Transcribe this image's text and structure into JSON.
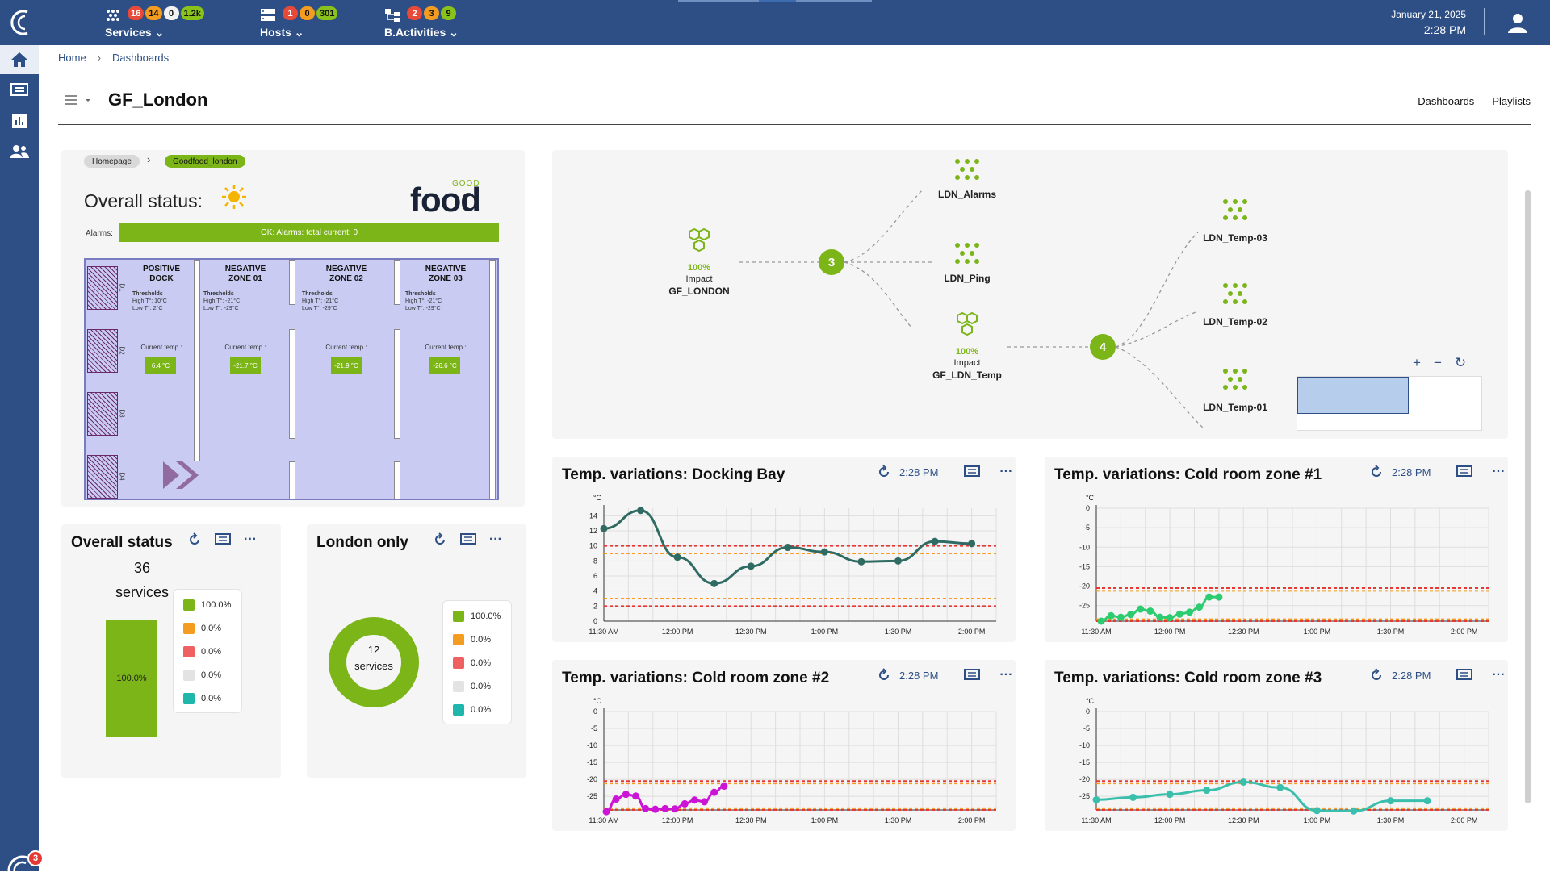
{
  "topbar": {
    "services": {
      "label": "Services",
      "badges": [
        "16",
        "14",
        "0",
        "1.2k"
      ]
    },
    "hosts": {
      "label": "Hosts",
      "badges": [
        "1",
        "0",
        "301"
      ]
    },
    "bactivities": {
      "label": "B.Activities",
      "badges": [
        "2",
        "3",
        "9"
      ]
    },
    "date": "January 21, 2025",
    "time": "2:28 PM",
    "icons": [
      "services-icon",
      "hosts-icon",
      "business-activities-icon",
      "user-icon",
      "logo-icon"
    ]
  },
  "badge_colors": {
    "critical": "#e84a3a",
    "warning": "#f39c1f",
    "unknown": "#f2f2f2",
    "ok": "#88c21a"
  },
  "sidebar": {
    "items": [
      "home-icon",
      "monitoring-icon",
      "reporting-icon",
      "users-icon"
    ],
    "notifications": "3"
  },
  "breadcrumb": {
    "home": "Home",
    "dashboards": "Dashboards"
  },
  "page": {
    "title": "GF_London",
    "links": {
      "dashboards": "Dashboards",
      "playlists": "Playlists"
    }
  },
  "floorplan": {
    "crumb_home": "Homepage",
    "crumb_current": "Goodfood_london",
    "status_label": "Overall status:",
    "logo_top": "GOOD",
    "logo_main": "food",
    "alarms_label": "Alarms:",
    "alarms_text": "OK: Alarms: total current: 0",
    "dock_labels": [
      "D1",
      "D2",
      "D3",
      "D4"
    ],
    "zones": [
      {
        "name_1": "POSITIVE",
        "name_2": "DOCK",
        "thresholds": "Thresholds",
        "high": "High T°: 10°C",
        "low": "Low T°: 2°C",
        "current_label": "Current temp.:",
        "current": "6.4 °C"
      },
      {
        "name_1": "NEGATIVE",
        "name_2": "ZONE 01",
        "thresholds": "Thresholds",
        "high": "High T°: -21°C",
        "low": "Low T°: -29°C",
        "current_label": "Current temp.:",
        "current": "-21.7 °C"
      },
      {
        "name_1": "NEGATIVE",
        "name_2": "ZONE 02",
        "thresholds": "Thresholds",
        "high": "High T°: -21°C",
        "low": "Low T°: -29°C",
        "current_label": "Current temp.:",
        "current": "-21.9 °C"
      },
      {
        "name_1": "NEGATIVE",
        "name_2": "ZONE 03",
        "thresholds": "Thresholds",
        "high": "High T°: -21°C",
        "low": "Low T°: -29°C",
        "current_label": "Current temp.:",
        "current": "-26.6 °C"
      }
    ],
    "accent": "#7cb518"
  },
  "topology": {
    "root": {
      "pct": "100%",
      "sub": "Impact",
      "name": "GF_LONDON"
    },
    "count1": "3",
    "children1": [
      "LDN_Alarms",
      "LDN_Ping"
    ],
    "mid": {
      "pct": "100%",
      "sub": "Impact",
      "name": "GF_LDN_Temp"
    },
    "count2": "4",
    "children2": [
      "LDN_Temp-03",
      "LDN_Temp-02",
      "LDN_Temp-01"
    ],
    "zoom": {
      "plus": "+",
      "minus": "−",
      "reset": "↻"
    }
  },
  "overall_status": {
    "title": "Overall status",
    "count": "36",
    "unit": "services",
    "bar_label": "100.0%",
    "legend": [
      {
        "color": "#7cb518",
        "value": "100.0%"
      },
      {
        "color": "#f39c1f",
        "value": "0.0%"
      },
      {
        "color": "#ef6060",
        "value": "0.0%"
      },
      {
        "color": "#e3e3e3",
        "value": "0.0%"
      },
      {
        "color": "#1fb6ac",
        "value": "0.0%"
      }
    ]
  },
  "london_only": {
    "title": "London only",
    "count": "12",
    "unit": "services",
    "legend": [
      {
        "color": "#7cb518",
        "value": "100.0%"
      },
      {
        "color": "#f39c1f",
        "value": "0.0%"
      },
      {
        "color": "#ef6060",
        "value": "0.0%"
      },
      {
        "color": "#e3e3e3",
        "value": "0.0%"
      },
      {
        "color": "#1fb6ac",
        "value": "0.0%"
      }
    ]
  },
  "widget_time": "2:28 PM",
  "chart_data": [
    {
      "type": "line",
      "title": "Temp. variations: Docking Bay",
      "ylabel": "°C",
      "ylim": [
        0,
        15
      ],
      "yticks": [
        0,
        2,
        4,
        6,
        8,
        10,
        12,
        14
      ],
      "xticks": [
        "11:30 AM",
        "12:00 PM",
        "12:30 PM",
        "1:00 PM",
        "1:30 PM",
        "2:00 PM"
      ],
      "xlim": [
        690,
        850
      ],
      "x": [
        690,
        705,
        720,
        735,
        750,
        765,
        780,
        795,
        810,
        825,
        840
      ],
      "y": [
        12.3,
        14.7,
        8.5,
        5.0,
        7.3,
        9.8,
        9.2,
        7.9,
        8.0,
        10.6,
        10.3
      ],
      "color": "#2f6b63",
      "thresholds": [
        {
          "value": 10.0,
          "color": "#e53935"
        },
        {
          "value": 9.0,
          "color": "#f39c1f"
        },
        {
          "value": 3.0,
          "color": "#f39c1f"
        },
        {
          "value": 2.0,
          "color": "#e53935"
        }
      ]
    },
    {
      "type": "line",
      "title": "Temp. variations: Cold room zone #1",
      "ylabel": "°C",
      "ylim": [
        -29,
        0
      ],
      "yticks": [
        0,
        -5,
        -10,
        -15,
        -20,
        -25
      ],
      "xticks": [
        "11:30 AM",
        "12:00 PM",
        "12:30 PM",
        "1:00 PM",
        "1:30 PM",
        "2:00 PM"
      ],
      "xlim": [
        690,
        850
      ],
      "x": [
        692,
        696,
        700,
        704,
        708,
        712,
        716,
        720,
        724,
        728,
        732,
        736,
        740
      ],
      "y": [
        -29,
        -27.6,
        -28.0,
        -27.3,
        -25.9,
        -26.4,
        -28.0,
        -28.1,
        -27.2,
        -26.7,
        -25.4,
        -22.8,
        -22.8
      ],
      "color": "#2ecc71",
      "thresholds": [
        {
          "value": -20.5,
          "color": "#e53935"
        },
        {
          "value": -21.2,
          "color": "#f39c1f"
        },
        {
          "value": -28.5,
          "color": "#f39c1f"
        },
        {
          "value": -29.0,
          "color": "#e53935"
        }
      ]
    },
    {
      "type": "line",
      "title": "Temp. variations: Cold room zone #2",
      "ylabel": "°C",
      "ylim": [
        -29,
        0
      ],
      "yticks": [
        0,
        -5,
        -10,
        -15,
        -20,
        -25
      ],
      "xticks": [
        "11:30 AM",
        "12:00 PM",
        "12:30 PM",
        "1:00 PM",
        "1:30 PM",
        "2:00 PM"
      ],
      "xlim": [
        690,
        850
      ],
      "x": [
        691,
        695,
        699,
        703,
        707,
        711,
        715,
        719,
        723,
        727,
        731,
        735,
        739
      ],
      "y": [
        -29.5,
        -25.8,
        -24.4,
        -24.9,
        -28.6,
        -28.8,
        -28.6,
        -28.7,
        -27.2,
        -26.1,
        -26.6,
        -23.8,
        -22.0
      ],
      "color": "#cc14d6",
      "thresholds": [
        {
          "value": -20.5,
          "color": "#e53935"
        },
        {
          "value": -21.2,
          "color": "#f39c1f"
        },
        {
          "value": -28.5,
          "color": "#f39c1f"
        },
        {
          "value": -29.0,
          "color": "#e53935"
        }
      ]
    },
    {
      "type": "line",
      "title": "Temp. variations: Cold room zone #3",
      "ylabel": "°C",
      "ylim": [
        -29,
        0
      ],
      "yticks": [
        0,
        -5,
        -10,
        -15,
        -20,
        -25
      ],
      "xticks": [
        "11:30 AM",
        "12:00 PM",
        "12:30 PM",
        "1:00 PM",
        "1:30 PM",
        "2:00 PM"
      ],
      "xlim": [
        690,
        850
      ],
      "x": [
        690,
        705,
        720,
        735,
        750,
        765,
        780,
        795,
        810,
        825
      ],
      "y": [
        -26.0,
        -25.3,
        -24.4,
        -23.2,
        -20.8,
        -22.4,
        -29.2,
        -29.3,
        -26.3,
        -26.3
      ],
      "color": "#3bbfad",
      "thresholds": [
        {
          "value": -20.5,
          "color": "#e53935"
        },
        {
          "value": -21.2,
          "color": "#f39c1f"
        },
        {
          "value": -28.5,
          "color": "#f39c1f"
        },
        {
          "value": -29.0,
          "color": "#e53935"
        }
      ]
    }
  ]
}
